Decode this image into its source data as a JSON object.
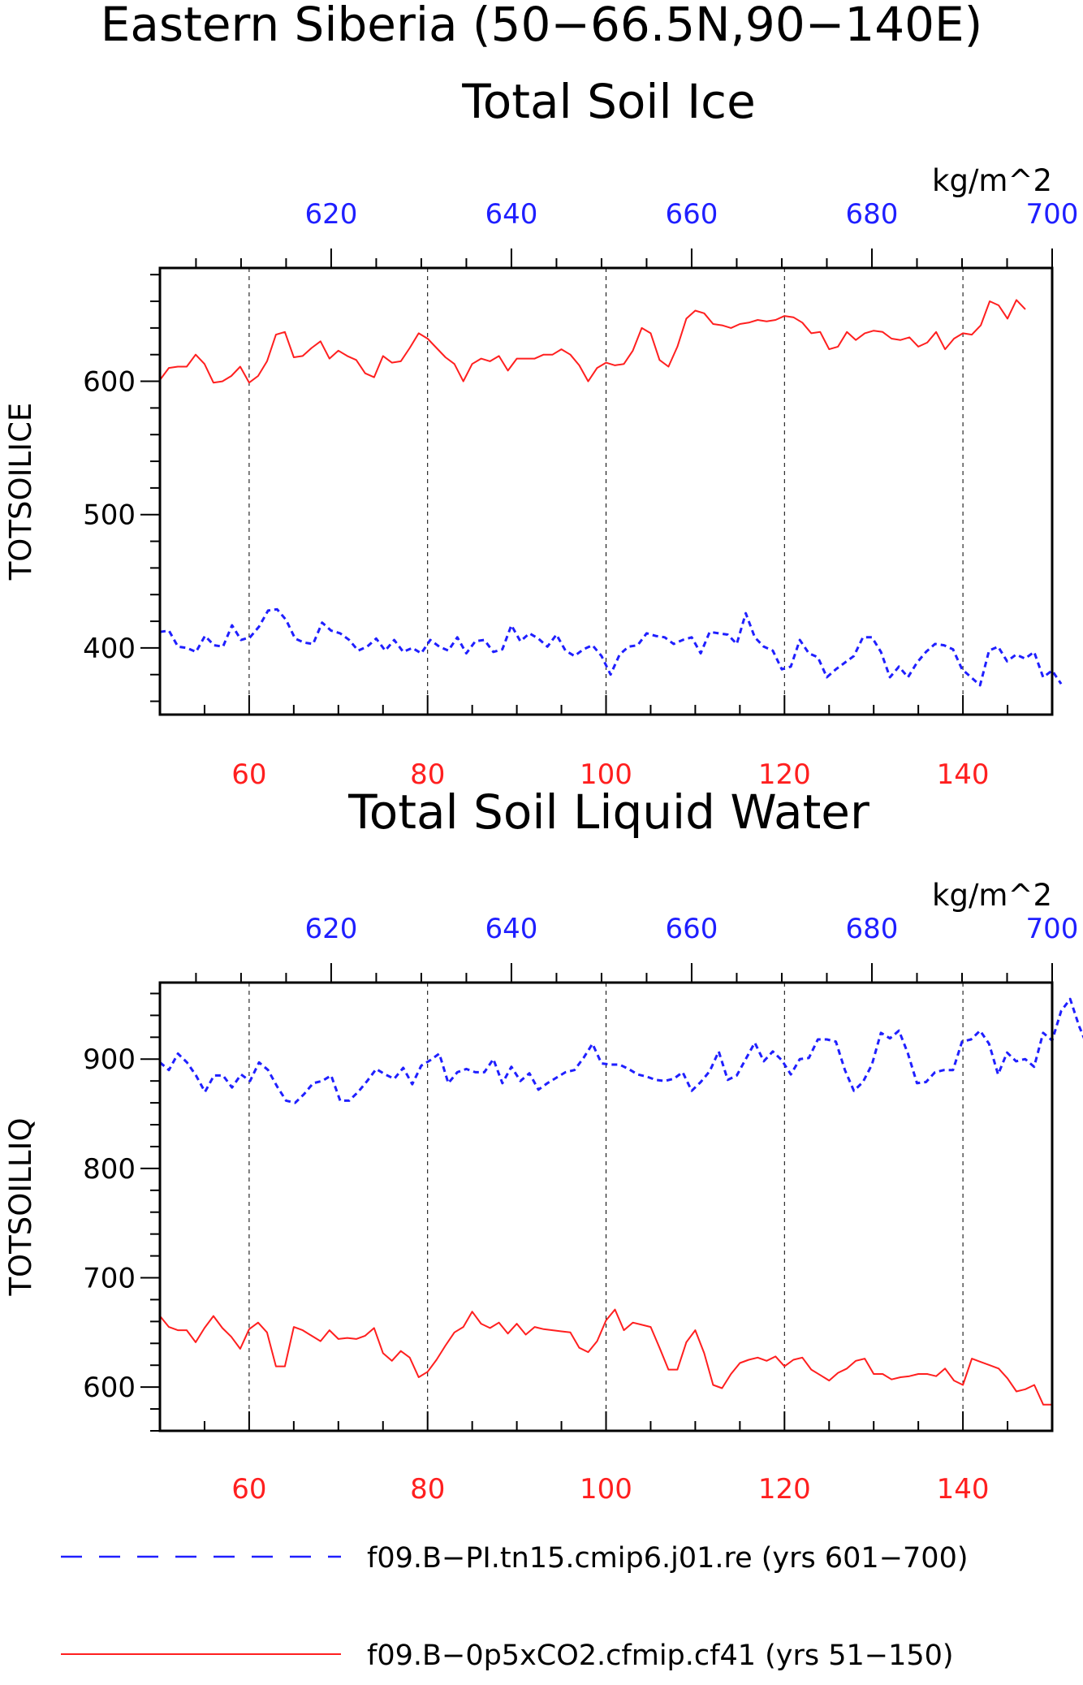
{
  "figure": {
    "title": "Eastern Siberia (50−66.5N,90−140E)",
    "legend": [
      {
        "label": "f09.B−PI.tn15.cmip6.j01.re (yrs 601−700)",
        "color": "#1f1fff",
        "style": "dashed"
      },
      {
        "label": "f09.B−0p5xCO2.cfmip.cf41 (yrs 51−150)",
        "color": "#ff1f1f",
        "style": "solid"
      }
    ]
  },
  "chart_data": [
    {
      "type": "line",
      "title": "Total Soil Ice",
      "ylabel": "TOTSOILICE",
      "units": "kg/m^2",
      "xlim_bottom": [
        50,
        150
      ],
      "xlim_top": [
        601,
        700
      ],
      "ylim": [
        350,
        685
      ],
      "xticks_bottom": [
        60,
        80,
        100,
        120,
        140
      ],
      "xticks_top": [
        620,
        640,
        660,
        680,
        700
      ],
      "yticks": [
        400,
        500,
        600
      ],
      "grid": "vertical dashed at major x ticks",
      "series": [
        {
          "name": "f09.B−0p5xCO2.cfmip.cf41 (yrs 51−150)",
          "axis": "bottom",
          "color": "#ff1f1f",
          "x_start": 50,
          "values": [
            601,
            610,
            611,
            611,
            620,
            613,
            599,
            600,
            604,
            611,
            599,
            604,
            615,
            635,
            637,
            618,
            619,
            625,
            630,
            617,
            623,
            619,
            616,
            606,
            603,
            619,
            614,
            615,
            625,
            636,
            632,
            625,
            618,
            613,
            600,
            613,
            617,
            615,
            619,
            608,
            617,
            617,
            617,
            620,
            620,
            624,
            620,
            612,
            600,
            610,
            614,
            612,
            613,
            623,
            640,
            636,
            616,
            611,
            626,
            647,
            653,
            651,
            643,
            642,
            640,
            643,
            644,
            646,
            645,
            646,
            649,
            648,
            644,
            636,
            637,
            624,
            626,
            637,
            631,
            636,
            638,
            637,
            632,
            631,
            633,
            626,
            629,
            637,
            624,
            632,
            636,
            635,
            642,
            660,
            657,
            647,
            661,
            654
          ]
        },
        {
          "name": "f09.B−PI.tn15.cmip6.j01.re (yrs 601−700)",
          "axis": "top",
          "color": "#1f1fff",
          "x_start": 601,
          "values": [
            412,
            413,
            401,
            400,
            397,
            409,
            402,
            401,
            417,
            406,
            408,
            416,
            428,
            429,
            421,
            407,
            404,
            403,
            419,
            413,
            411,
            406,
            398,
            401,
            407,
            398,
            406,
            397,
            400,
            396,
            406,
            401,
            398,
            408,
            396,
            405,
            406,
            397,
            399,
            417,
            405,
            411,
            407,
            401,
            410,
            398,
            394,
            399,
            402,
            394,
            380,
            395,
            401,
            402,
            411,
            409,
            408,
            403,
            406,
            408,
            396,
            412,
            411,
            410,
            403,
            426,
            408,
            401,
            398,
            384,
            386,
            406,
            396,
            393,
            378,
            384,
            389,
            394,
            408,
            408,
            397,
            378,
            386,
            378,
            389,
            397,
            403,
            402,
            399,
            384,
            378,
            372,
            398,
            401,
            390,
            395,
            392,
            397,
            378,
            383,
            373
          ]
        }
      ]
    },
    {
      "type": "line",
      "title": "Total Soil Liquid Water",
      "ylabel": "TOTSOILLIQ",
      "units": "kg/m^2",
      "xlim_bottom": [
        50,
        150
      ],
      "xlim_top": [
        601,
        700
      ],
      "ylim": [
        560,
        970
      ],
      "xticks_bottom": [
        60,
        80,
        100,
        120,
        140
      ],
      "xticks_top": [
        620,
        640,
        660,
        680,
        700
      ],
      "yticks": [
        600,
        700,
        800,
        900
      ],
      "grid": "vertical dashed at major x ticks",
      "series": [
        {
          "name": "f09.B−0p5xCO2.cfmip.cf41 (yrs 51−150)",
          "axis": "bottom",
          "color": "#ff1f1f",
          "x_start": 50,
          "values": [
            665,
            655,
            652,
            652,
            641,
            654,
            665,
            654,
            646,
            635,
            653,
            659,
            650,
            619,
            619,
            655,
            652,
            647,
            642,
            652,
            644,
            645,
            644,
            647,
            654,
            631,
            624,
            633,
            627,
            609,
            614,
            625,
            638,
            650,
            655,
            669,
            658,
            654,
            659,
            649,
            658,
            648,
            655,
            653,
            652,
            651,
            650,
            636,
            632,
            642,
            661,
            671,
            652,
            659,
            657,
            655,
            636,
            616,
            616,
            641,
            652,
            631,
            602,
            599,
            612,
            622,
            625,
            627,
            624,
            628,
            619,
            625,
            627,
            616,
            611,
            606,
            613,
            617,
            624,
            626,
            612,
            612,
            607,
            609,
            610,
            612,
            612,
            610,
            617,
            606,
            602,
            626,
            623,
            620,
            617,
            608,
            596,
            598,
            602,
            584,
            584
          ]
        },
        {
          "name": "f09.B−PI.tn15.cmip6.j01.re (yrs 601−700)",
          "axis": "top",
          "color": "#1f1fff",
          "x_start": 601,
          "values": [
            897,
            890,
            905,
            897,
            885,
            870,
            885,
            885,
            874,
            886,
            880,
            897,
            890,
            875,
            862,
            860,
            868,
            878,
            880,
            885,
            862,
            862,
            870,
            880,
            891,
            886,
            882,
            892,
            877,
            894,
            899,
            905,
            878,
            888,
            891,
            888,
            888,
            900,
            878,
            893,
            880,
            887,
            872,
            878,
            883,
            888,
            890,
            901,
            914,
            896,
            895,
            895,
            891,
            886,
            884,
            881,
            880,
            882,
            888,
            871,
            879,
            889,
            907,
            881,
            885,
            900,
            915,
            898,
            907,
            899,
            886,
            900,
            901,
            918,
            918,
            916,
            890,
            871,
            879,
            895,
            924,
            919,
            926,
            905,
            878,
            879,
            888,
            890,
            890,
            916,
            918,
            926,
            914,
            886,
            906,
            898,
            900,
            893,
            924,
            917,
            944,
            955,
            930,
            910
          ]
        }
      ]
    }
  ]
}
